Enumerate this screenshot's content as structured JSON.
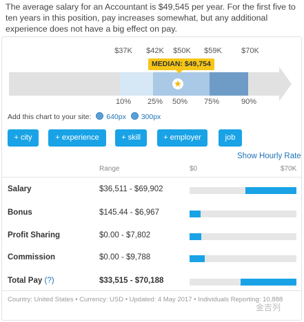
{
  "intro_text": "The average salary for an Accountant is $49,545 per year. For the first five to ten years in this position, pay increases somewhat, but any additional experience does not have a big effect on pay.",
  "percentile_chart": {
    "top_labels": [
      "$37K",
      "$42K",
      "$50K",
      "$59K",
      "$70K"
    ],
    "bottom_labels": [
      "10%",
      "25%",
      "50%",
      "75%",
      "90%"
    ],
    "median_badge": "MEDIAN: $49,754",
    "colors": {
      "band_light": "#d6e7f5",
      "band_mid": "#a9c9e6",
      "band_dark": "#6f9cc7",
      "arrow": "#e1e1e1",
      "badge": "#f5c518"
    }
  },
  "add_chart": {
    "label": "Add this chart to your site:",
    "links": [
      "640px",
      "300px"
    ],
    "icon": "globe-icon"
  },
  "filter_buttons": [
    "+ city",
    "+ experience",
    "+ skill",
    "+ employer",
    "job"
  ],
  "show_hourly": "Show Hourly Rate",
  "table": {
    "headers": {
      "range": "Range",
      "min": "$0",
      "max": "$70K"
    },
    "rows": [
      {
        "label": "Salary",
        "range": "$36,511 - $69,902",
        "start_frac": 0.52,
        "end_frac": 1.0
      },
      {
        "label": "Bonus",
        "range": "$145.44 - $6,967",
        "start_frac": 0.0,
        "end_frac": 0.1
      },
      {
        "label": "Profit Sharing",
        "range": "$0.00 - $7,802",
        "start_frac": 0.0,
        "end_frac": 0.11
      },
      {
        "label": "Commission",
        "range": "$0.00 - $9,788",
        "start_frac": 0.0,
        "end_frac": 0.14
      },
      {
        "label": "Total Pay",
        "help": "(?)",
        "range": "$33,515 - $70,188",
        "start_frac": 0.48,
        "end_frac": 1.0
      }
    ]
  },
  "footer": "Country: United States • Currency: USD • Updated: 4 May 2017 • Individuals Reporting: 10,888",
  "watermark": "金吉列",
  "accent_color": "#19a3e6"
}
